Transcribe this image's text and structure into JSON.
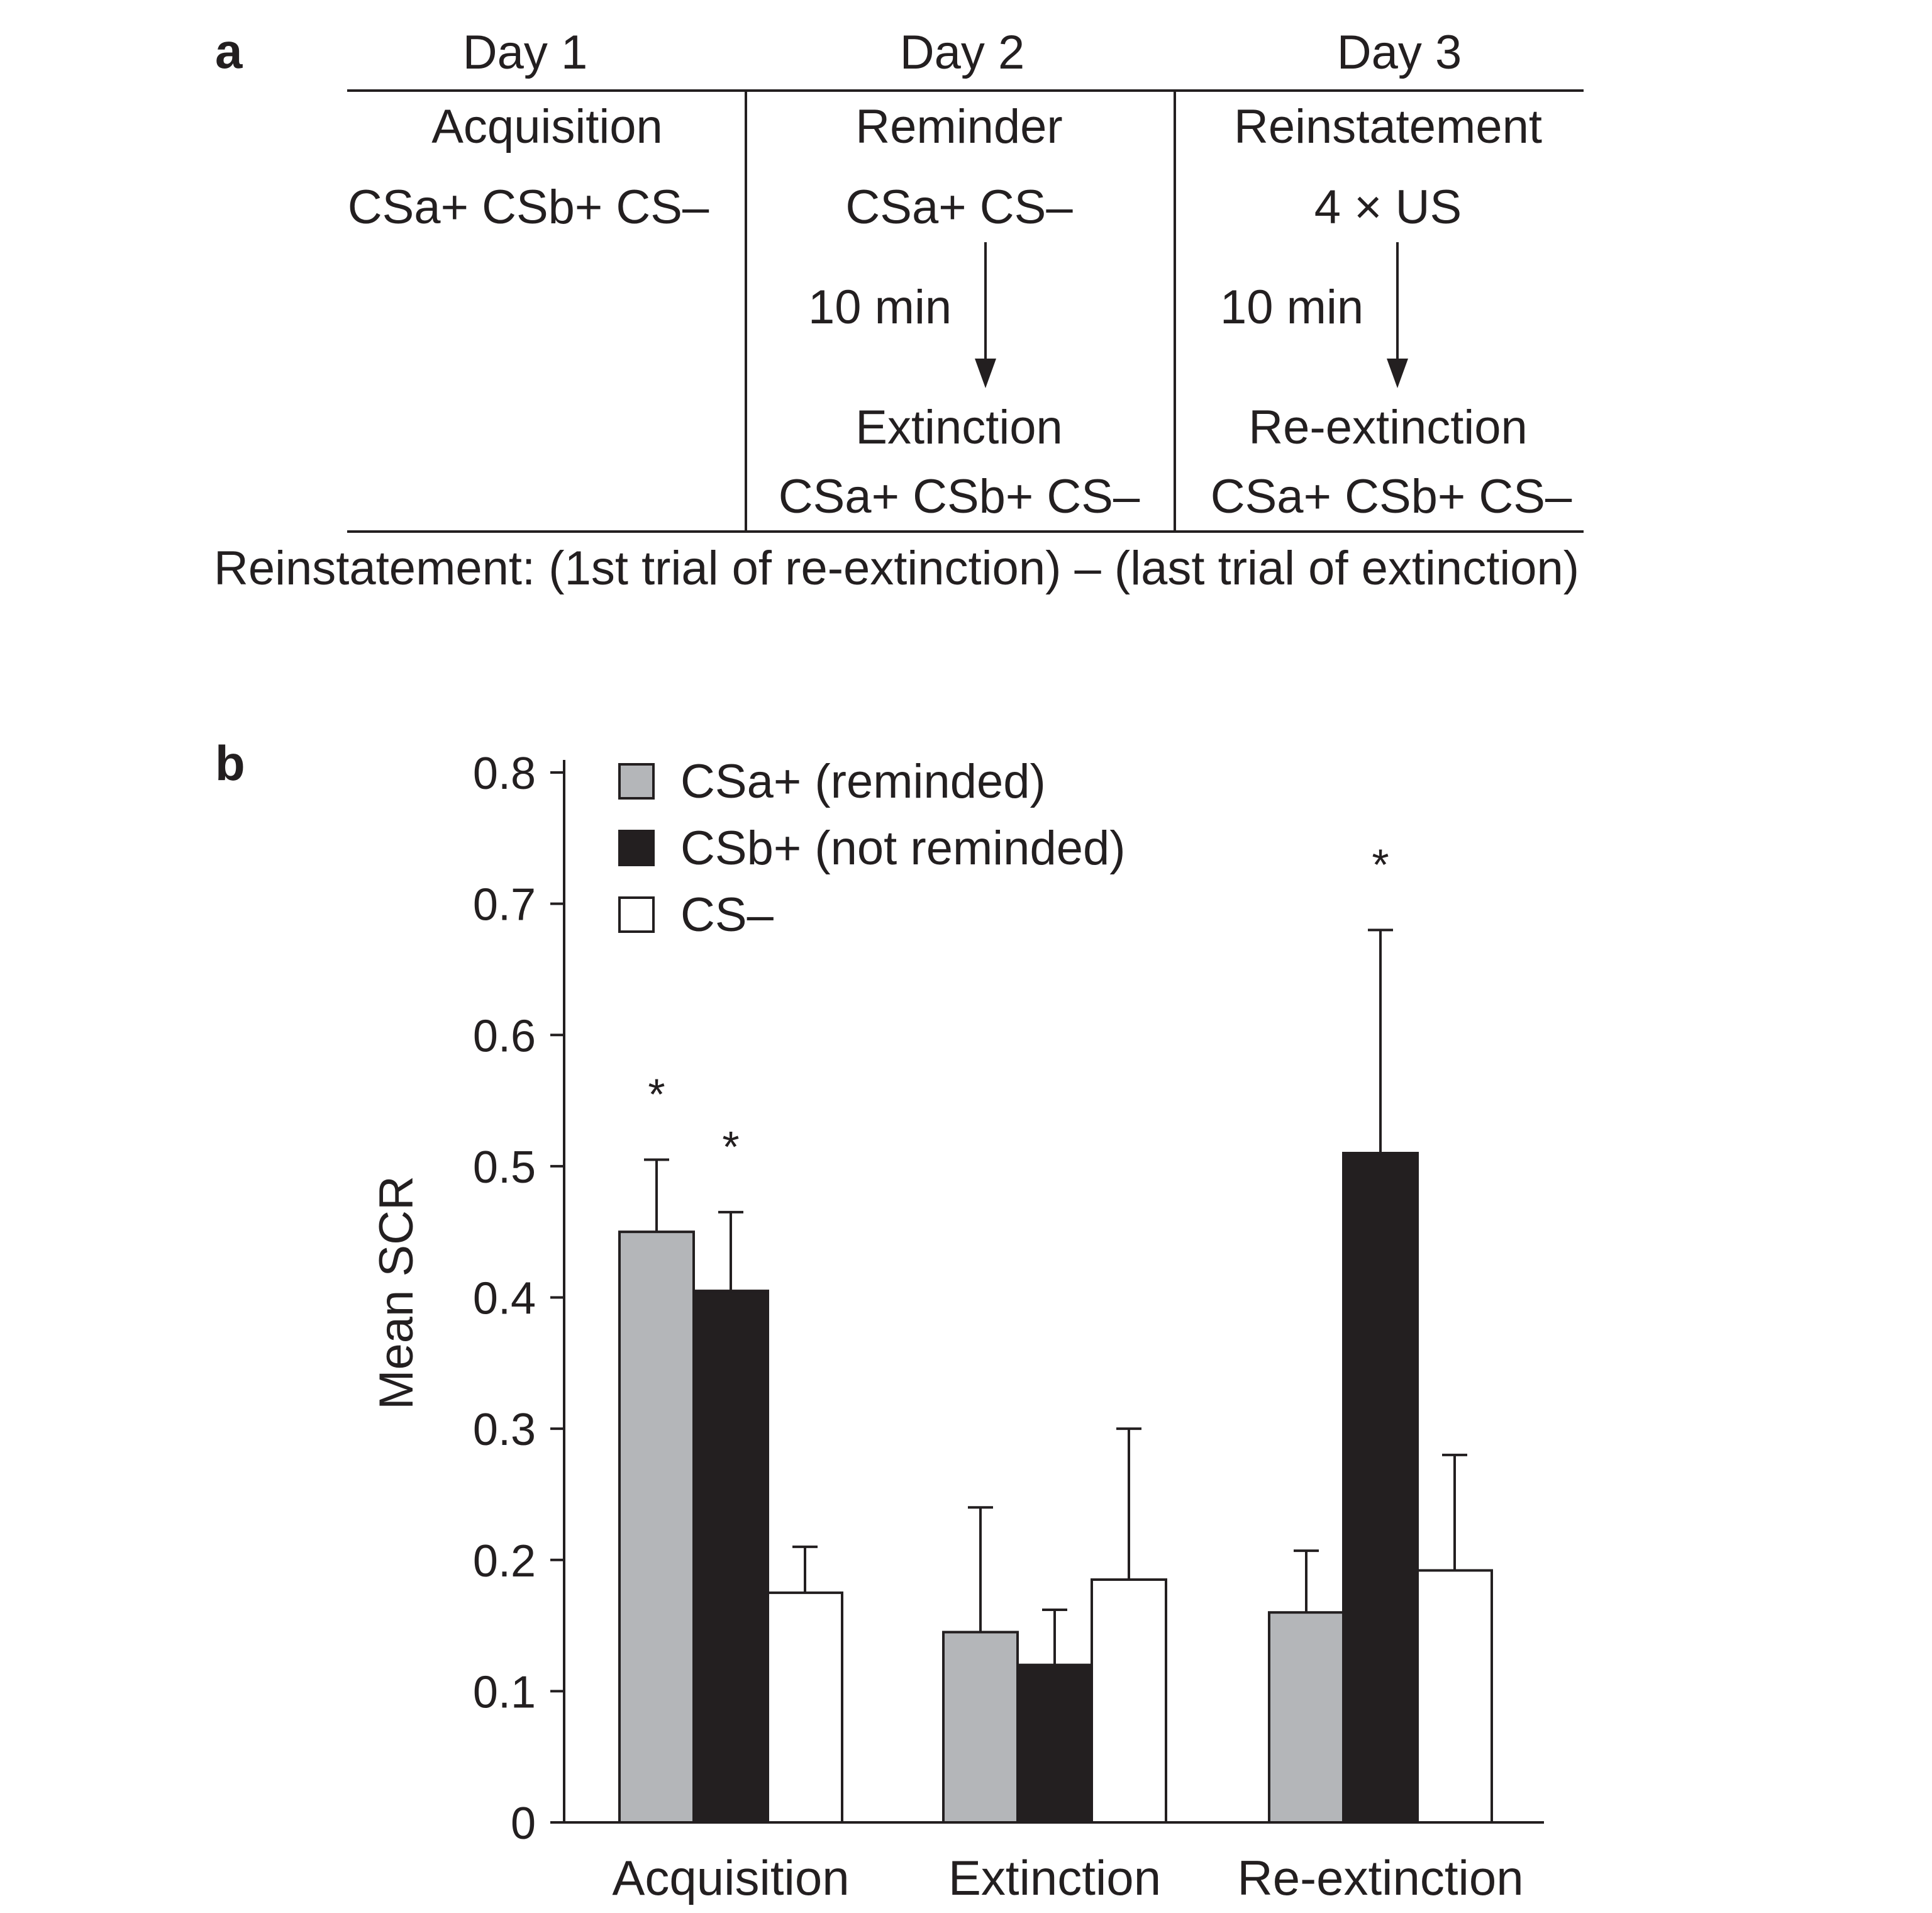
{
  "panel_a": {
    "letter": "a",
    "days": [
      {
        "day": "Day 1",
        "phase": "Acquisition",
        "stimuli": "CSa+ CSb+ CS–"
      },
      {
        "day": "Day 2",
        "phase": "Reminder",
        "stimuli": "CSa+ CS–",
        "delay": "10 min",
        "next_phase": "Extinction",
        "next_stimuli": "CSa+ CSb+ CS–"
      },
      {
        "day": "Day 3",
        "phase": "Reinstatement",
        "stimuli": "4 × US",
        "delay": "10 min",
        "next_phase": "Re-extinction",
        "next_stimuli": "CSa+ CSb+ CS–"
      }
    ],
    "formula": "Reinstatement: (1st trial of re-extinction) – (last trial of extinction)"
  },
  "panel_b": {
    "letter": "b"
  },
  "colors": {
    "csa": "#b4b6b9",
    "csb": "#231f20",
    "csminus": "#ffffff",
    "ink": "#231f20"
  },
  "chart_data": {
    "type": "bar",
    "title": "",
    "xlabel": "",
    "ylabel": "Mean SCR",
    "ylim": [
      0,
      0.8
    ],
    "yticks": [
      0,
      0.1,
      0.2,
      0.3,
      0.4,
      0.5,
      0.6,
      0.7,
      0.8
    ],
    "ytick_labels": [
      "0",
      "0.1",
      "0.2",
      "0.3",
      "0.4",
      "0.5",
      "0.6",
      "0.7",
      "0.8"
    ],
    "categories": [
      "Acquisition",
      "Extinction",
      "Re-extinction"
    ],
    "legend_position": "top-left",
    "series": [
      {
        "name": "CSa+ (reminded)",
        "values": [
          0.45,
          0.145,
          0.16
        ],
        "errors": [
          0.055,
          0.095,
          0.047
        ],
        "significant": [
          true,
          false,
          false
        ]
      },
      {
        "name": "CSb+ (not reminded)",
        "values": [
          0.405,
          0.12,
          0.51
        ],
        "errors": [
          0.06,
          0.042,
          0.17
        ],
        "significant": [
          true,
          false,
          true
        ]
      },
      {
        "name": "CS–",
        "values": [
          0.175,
          0.185,
          0.192
        ],
        "errors": [
          0.035,
          0.115,
          0.088
        ],
        "significant": [
          false,
          false,
          false
        ]
      }
    ],
    "significance_marker": "*"
  }
}
